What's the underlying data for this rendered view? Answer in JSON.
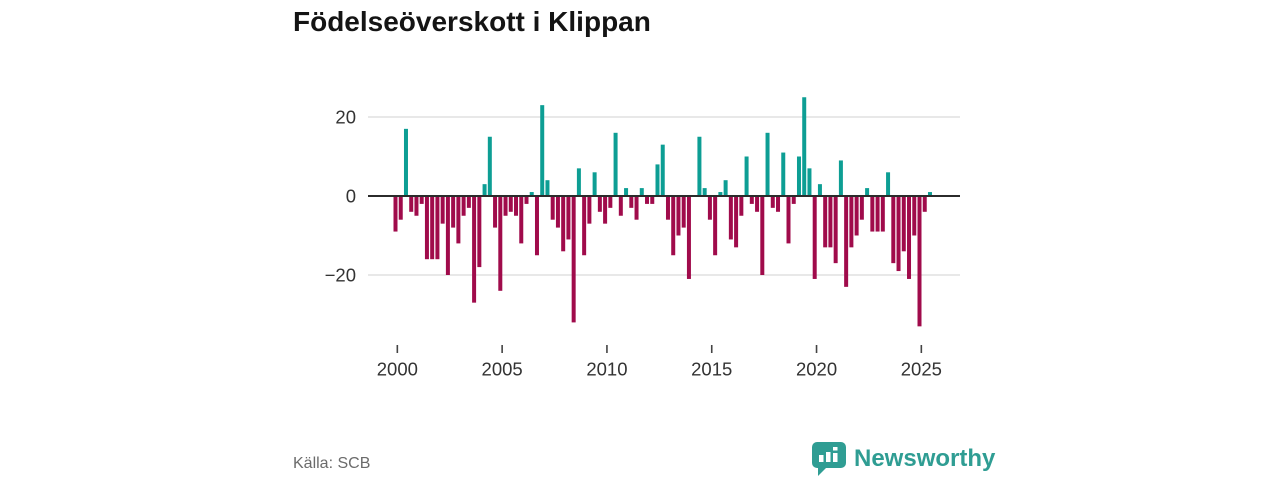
{
  "header": {
    "title": "Födelseöverskott i Klippan"
  },
  "footer": {
    "source_label": "Källa: SCB",
    "brand_name": "Newsworthy"
  },
  "colors": {
    "positive_bar": "#0d9e94",
    "negative_bar": "#a00b4b",
    "axis_line": "#2b2b2b",
    "gridline": "#d9d9d9",
    "tick_label": "#333333",
    "title_text": "#141414",
    "source_text": "#6b6b6b",
    "brand_teal": "#2f9d93",
    "background": "#ffffff"
  },
  "chart_data": {
    "type": "bar",
    "title": "Födelseöverskott i Klippan",
    "xlabel": "",
    "ylabel": "",
    "y_ticks": [
      20,
      0,
      -20
    ],
    "y_tick_labels": [
      "20",
      "0",
      "−20"
    ],
    "x_tick_labels": [
      "2000",
      "2005",
      "2010",
      "2015",
      "2020",
      "2025"
    ],
    "ylim": [
      -35,
      27
    ],
    "grid": "horizontal",
    "legend": "none",
    "series_name": "Födelseöverskott per kvartal",
    "periods": [
      "2000 Q1",
      "2000 Q2",
      "2000 Q3",
      "2000 Q4",
      "2001 Q1",
      "2001 Q2",
      "2001 Q3",
      "2001 Q4",
      "2002 Q1",
      "2002 Q2",
      "2002 Q3",
      "2002 Q4",
      "2003 Q1",
      "2003 Q2",
      "2003 Q3",
      "2003 Q4",
      "2004 Q1",
      "2004 Q2",
      "2004 Q3",
      "2004 Q4",
      "2005 Q1",
      "2005 Q2",
      "2005 Q3",
      "2005 Q4",
      "2006 Q1",
      "2006 Q2",
      "2006 Q3",
      "2006 Q4",
      "2007 Q1",
      "2007 Q2",
      "2007 Q3",
      "2007 Q4",
      "2008 Q1",
      "2008 Q2",
      "2008 Q3",
      "2008 Q4",
      "2009 Q1",
      "2009 Q2",
      "2009 Q3",
      "2009 Q4",
      "2010 Q1",
      "2010 Q2",
      "2010 Q3",
      "2010 Q4",
      "2011 Q1",
      "2011 Q2",
      "2011 Q3",
      "2011 Q4",
      "2012 Q1",
      "2012 Q2",
      "2012 Q3",
      "2012 Q4",
      "2013 Q1",
      "2013 Q2",
      "2013 Q3",
      "2013 Q4",
      "2014 Q1",
      "2014 Q2",
      "2014 Q3",
      "2014 Q4",
      "2015 Q1",
      "2015 Q2",
      "2015 Q3",
      "2015 Q4",
      "2016 Q1",
      "2016 Q2",
      "2016 Q3",
      "2016 Q4",
      "2017 Q1",
      "2017 Q2",
      "2017 Q3",
      "2017 Q4",
      "2018 Q1",
      "2018 Q2",
      "2018 Q3",
      "2018 Q4",
      "2019 Q1",
      "2019 Q2",
      "2019 Q3",
      "2019 Q4",
      "2020 Q1",
      "2020 Q2",
      "2020 Q3",
      "2020 Q4",
      "2021 Q1",
      "2021 Q2",
      "2021 Q3",
      "2021 Q4",
      "2022 Q1",
      "2022 Q2",
      "2022 Q3",
      "2022 Q4",
      "2023 Q1",
      "2023 Q2",
      "2023 Q3",
      "2023 Q4",
      "2024 Q1",
      "2024 Q2",
      "2024 Q3",
      "2024 Q4",
      "2025 Q1",
      "2025 Q2",
      "2025 Q3"
    ],
    "values": [
      -9,
      -6,
      17,
      -4,
      -5,
      -2,
      -16,
      -16,
      -16,
      -7,
      -20,
      -8,
      -12,
      -5,
      -3,
      -27,
      -18,
      3,
      15,
      -8,
      -24,
      -5,
      -4,
      -5,
      -12,
      -2,
      1,
      -15,
      23,
      4,
      -6,
      -8,
      -14,
      -11,
      -32,
      7,
      -15,
      -7,
      6,
      -4,
      -7,
      -3,
      16,
      -5,
      2,
      -3,
      -6,
      2,
      -2,
      -2,
      8,
      13,
      -6,
      -15,
      -10,
      -8,
      -21,
      0,
      15,
      2,
      -6,
      -15,
      1,
      4,
      -11,
      -13,
      -5,
      10,
      -2,
      -4,
      -20,
      16,
      -3,
      -4,
      11,
      -12,
      -2,
      10,
      25,
      7,
      -21,
      3,
      -13,
      -13,
      -17,
      9,
      -23,
      -13,
      -10,
      -6,
      2,
      -9,
      -9,
      -9,
      6,
      -17,
      -19,
      -14,
      -21,
      -10,
      -33,
      -4,
      1
    ]
  }
}
